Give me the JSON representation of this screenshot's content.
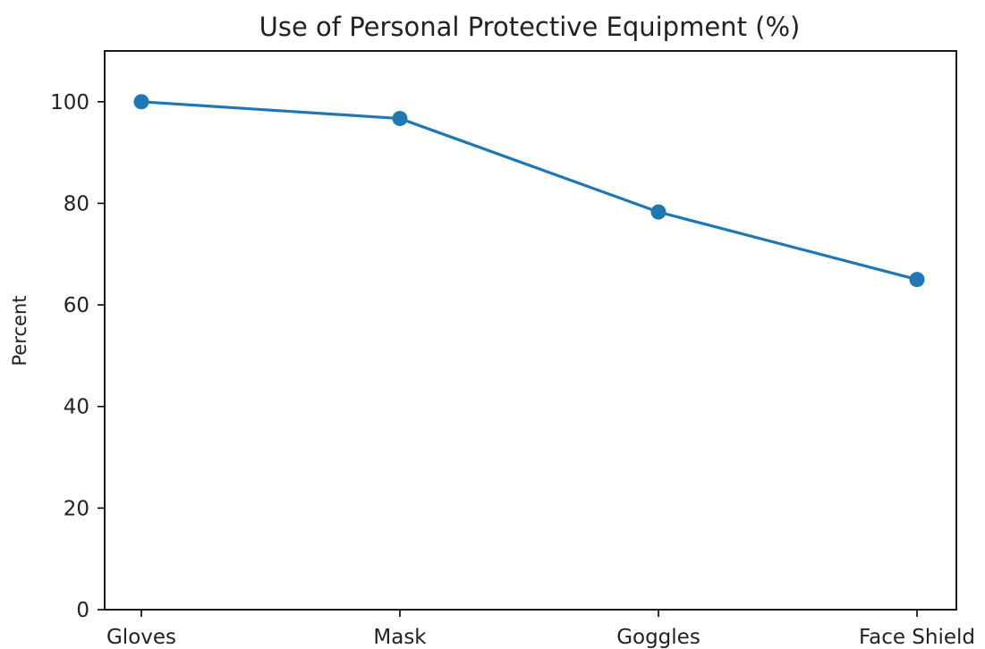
{
  "chart_data": {
    "type": "line",
    "title": "Use of Personal Protective Equipment (%)",
    "xlabel": "",
    "ylabel": "Percent",
    "categories": [
      "Gloves",
      "Mask",
      "Goggles",
      "Face Shield"
    ],
    "series": [
      {
        "values": [
          100,
          96.7,
          78.3,
          65
        ]
      }
    ],
    "ylim": [
      0,
      110
    ],
    "yticks": [
      0,
      20,
      40,
      60,
      80,
      100
    ],
    "grid": false,
    "legend": "none",
    "colors": {
      "line": "#1f77b4",
      "marker": "#1f77b4",
      "axis": "#000000",
      "text": "#222222"
    }
  }
}
